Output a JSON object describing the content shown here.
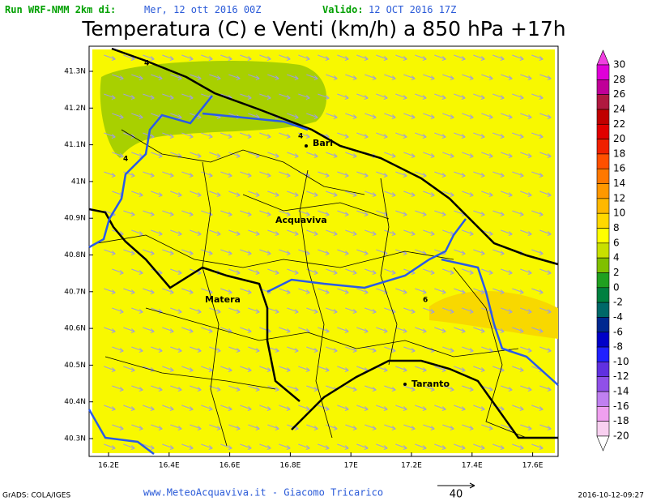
{
  "header": {
    "run_label": "Run WRF-NMM 2km di:",
    "run_date": "Mer, 12 ott 2016 00Z",
    "valid_label": "Valido:",
    "valid_date": "12 OCT 2016 17Z",
    "title": "Temperatura (C) e Venti (km/h) a 850 hPa +17h"
  },
  "map": {
    "lat_labels": [
      "41.3N",
      "41.2N",
      "41.1N",
      "41N",
      "40.9N",
      "40.8N",
      "40.7N",
      "40.6N",
      "40.5N",
      "40.4N",
      "40.3N"
    ],
    "lon_labels": [
      "16.2E",
      "16.4E",
      "16.6E",
      "16.8E",
      "17E",
      "17.2E",
      "17.4E",
      "17.6E"
    ],
    "cities": [
      "Bari",
      "Acquaviva",
      "Matera",
      "Taranto"
    ],
    "contour_labels": [
      "4",
      "4",
      "4",
      "6"
    ]
  },
  "colorbar": {
    "labels": [
      30,
      28,
      26,
      24,
      22,
      20,
      18,
      16,
      14,
      12,
      10,
      8,
      6,
      4,
      2,
      0,
      -2,
      -4,
      -6,
      -8,
      -10,
      -12,
      -14,
      -16,
      -18,
      -20
    ],
    "colors": [
      "#f040e0",
      "#e000d8",
      "#c00098",
      "#b01840",
      "#c00000",
      "#e00000",
      "#f02000",
      "#ff5000",
      "#ff7800",
      "#ff9800",
      "#ffb800",
      "#ffd800",
      "#ffff00",
      "#c8e000",
      "#80c000",
      "#20a020",
      "#008040",
      "#006868",
      "#002890",
      "#0000c8",
      "#2020ff",
      "#6030e0",
      "#9050e8",
      "#c080f0",
      "#f0a0f0",
      "#f8d0f0",
      "#ffffff"
    ]
  },
  "footer": {
    "software": "GrADS: COLA/IGES",
    "credit": "www.MeteoAcquaviva.it - Giacomo Tricarico",
    "wind_scale": "40",
    "timestamp": "2016-10-12-09:27"
  }
}
